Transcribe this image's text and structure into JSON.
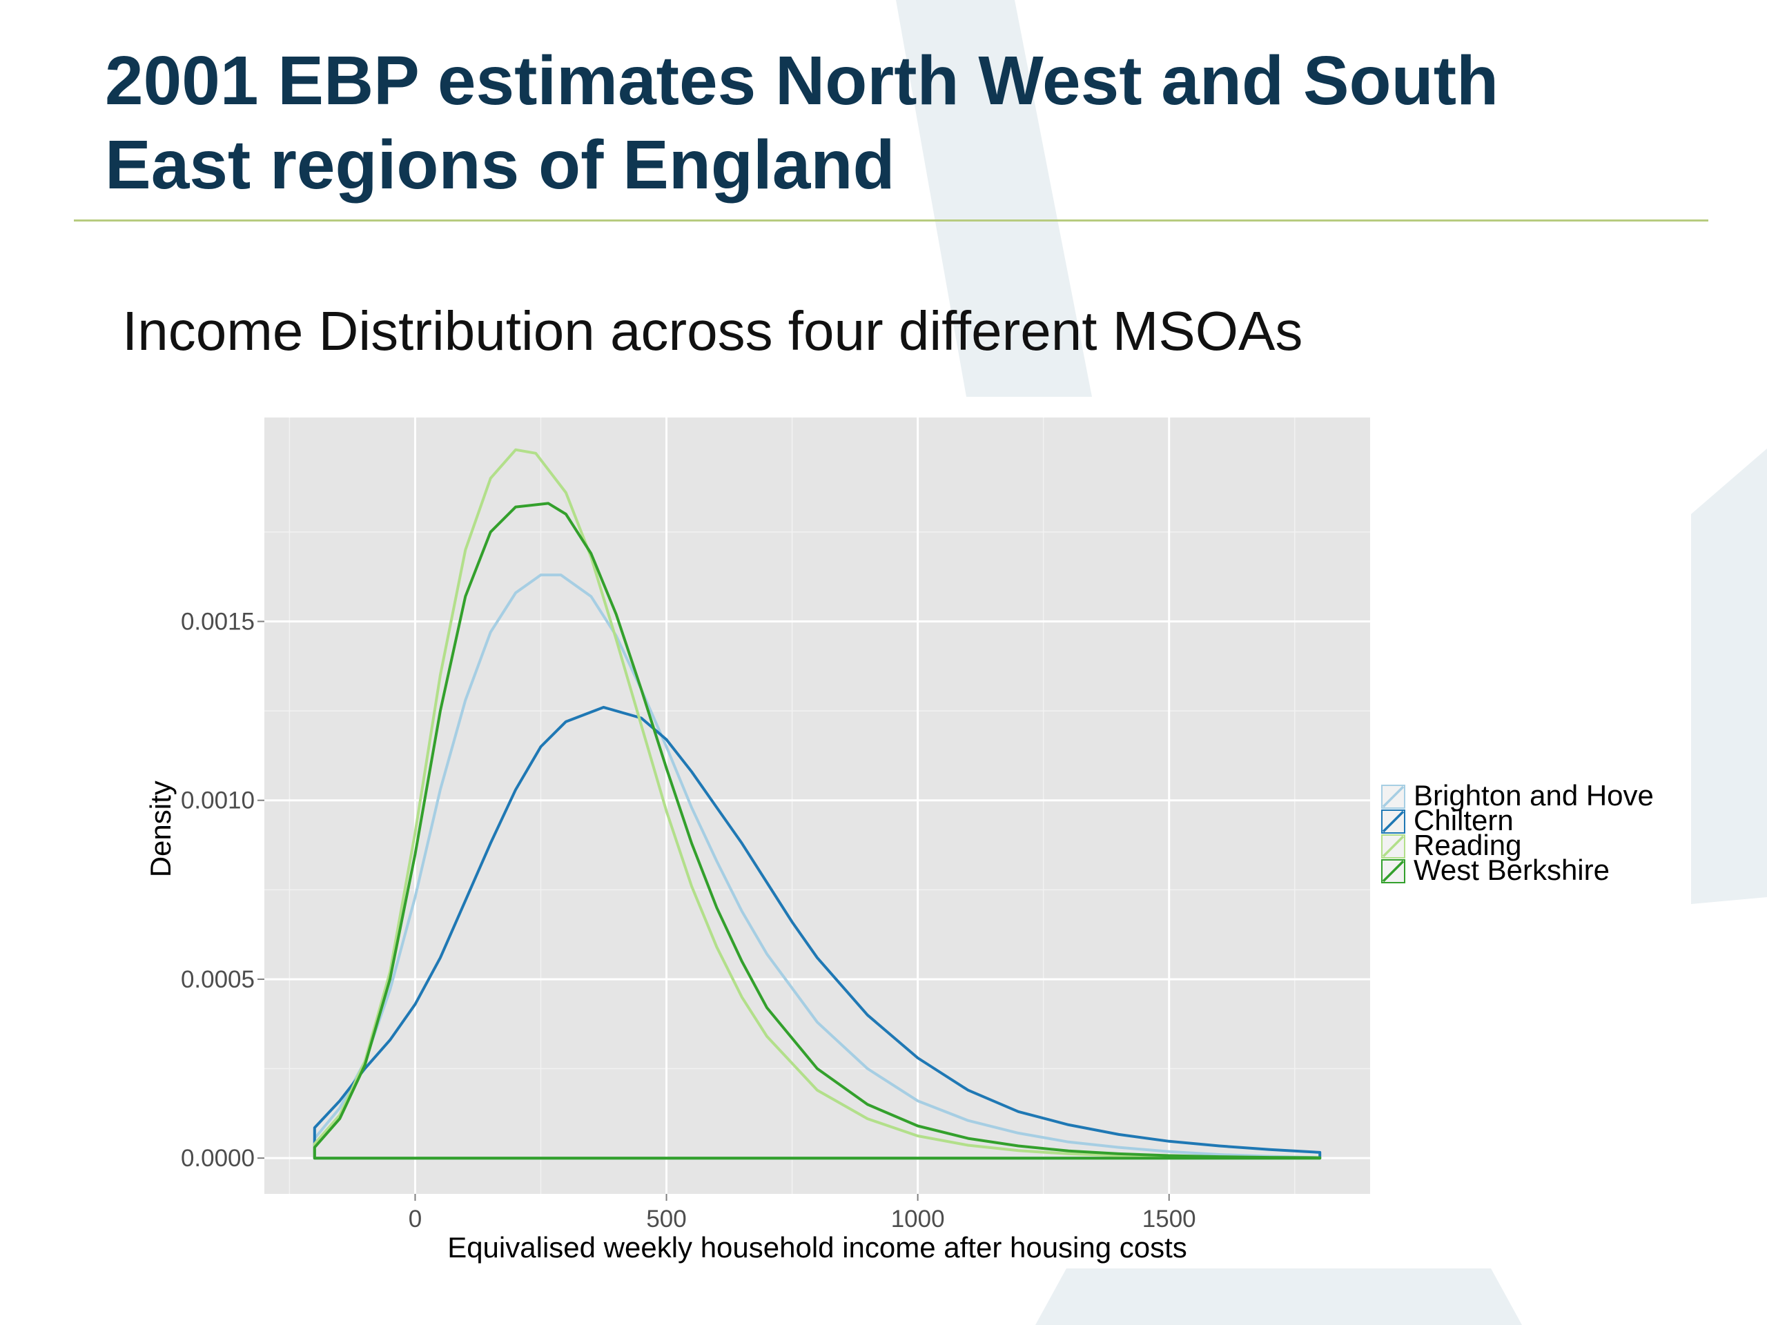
{
  "slide": {
    "title_line1": "2001 EBP estimates North West and South",
    "title_line2": "East  regions of England",
    "subtitle": "Income Distribution across four different MSOAs",
    "colors": {
      "title": "#0f3651",
      "rule": "#b7cb7f",
      "decoration": "#eaf0f3"
    }
  },
  "chart_data": {
    "type": "area",
    "title": "",
    "xlabel": "Equivalised weekly household income after housing costs",
    "ylabel": "Density",
    "xlim": [
      -300,
      1900
    ],
    "ylim": [
      -0.0001,
      0.00207
    ],
    "x_ticks": [
      0,
      500,
      1000,
      1500
    ],
    "x_tick_labels": [
      "0",
      "500",
      "1000",
      "1500"
    ],
    "y_ticks": [
      0,
      0.0005,
      0.001,
      0.0015
    ],
    "y_tick_labels": [
      "0.0000",
      "0.0005",
      "0.0010",
      "0.0015"
    ],
    "grid": true,
    "legend_position": "right",
    "panel_color": "#e5e5e5",
    "series": [
      {
        "name": "Brighton and Hove",
        "color": "#a6cee3",
        "x": [
          -200,
          -150,
          -100,
          -50,
          0,
          50,
          100,
          150,
          200,
          250,
          290,
          350,
          400,
          450,
          500,
          550,
          600,
          650,
          700,
          800,
          900,
          1000,
          1100,
          1200,
          1300,
          1400,
          1500,
          1600,
          1700,
          1800
        ],
        "y": [
          5.5e-05,
          0.00014,
          0.00027,
          0.00047,
          0.00073,
          0.00103,
          0.00128,
          0.00147,
          0.00158,
          0.00163,
          0.00163,
          0.00157,
          0.00146,
          0.00131,
          0.00115,
          0.00098,
          0.00083,
          0.00069,
          0.00057,
          0.00038,
          0.00025,
          0.00016,
          0.000105,
          7e-05,
          4.5e-05,
          3e-05,
          1.8e-05,
          1e-05,
          5e-06,
          1e-06
        ]
      },
      {
        "name": "Chiltern",
        "color": "#1f78b4",
        "x": [
          -200,
          -150,
          -100,
          -50,
          0,
          50,
          100,
          150,
          200,
          250,
          300,
          375,
          450,
          500,
          550,
          600,
          650,
          700,
          750,
          800,
          900,
          1000,
          1100,
          1200,
          1300,
          1400,
          1500,
          1600,
          1700,
          1800
        ],
        "y": [
          8.5e-05,
          0.00016,
          0.00025,
          0.00033,
          0.00043,
          0.00056,
          0.00072,
          0.00088,
          0.00103,
          0.00115,
          0.00122,
          0.00126,
          0.00123,
          0.00117,
          0.00108,
          0.00098,
          0.00088,
          0.00077,
          0.00066,
          0.00056,
          0.0004,
          0.00028,
          0.00019,
          0.00013,
          9.3e-05,
          6.6e-05,
          4.7e-05,
          3.4e-05,
          2.4e-05,
          1.6e-05
        ]
      },
      {
        "name": "Reading",
        "color": "#b2df8a",
        "x": [
          -200,
          -150,
          -100,
          -50,
          0,
          50,
          100,
          150,
          200,
          240,
          300,
          350,
          400,
          450,
          500,
          550,
          600,
          650,
          700,
          800,
          900,
          1000,
          1100,
          1200,
          1300,
          1400,
          1500,
          1600,
          1700,
          1800
        ],
        "y": [
          4e-05,
          0.00012,
          0.00027,
          0.00052,
          0.00091,
          0.00135,
          0.0017,
          0.0019,
          0.00198,
          0.00197,
          0.00186,
          0.00168,
          0.00145,
          0.00121,
          0.00097,
          0.00076,
          0.00059,
          0.00045,
          0.00034,
          0.00019,
          0.00011,
          6.2e-05,
          3.6e-05,
          2.1e-05,
          1.2e-05,
          7e-06,
          4e-06,
          2e-06,
          1e-06,
          0
        ]
      },
      {
        "name": "West Berkshire",
        "color": "#33a02c",
        "x": [
          -200,
          -150,
          -100,
          -50,
          0,
          50,
          100,
          150,
          200,
          265,
          300,
          350,
          400,
          450,
          500,
          550,
          600,
          650,
          700,
          800,
          900,
          1000,
          1100,
          1200,
          1300,
          1400,
          1500,
          1600,
          1700,
          1800
        ],
        "y": [
          3e-05,
          0.00011,
          0.00026,
          0.0005,
          0.00085,
          0.00125,
          0.00157,
          0.00175,
          0.00182,
          0.00183,
          0.0018,
          0.00169,
          0.00152,
          0.00131,
          0.00109,
          0.00088,
          0.0007,
          0.00055,
          0.00042,
          0.00025,
          0.00015,
          9e-05,
          5.5e-05,
          3.4e-05,
          2e-05,
          1.2e-05,
          7e-06,
          4e-06,
          2e-06,
          1e-06
        ]
      }
    ]
  }
}
